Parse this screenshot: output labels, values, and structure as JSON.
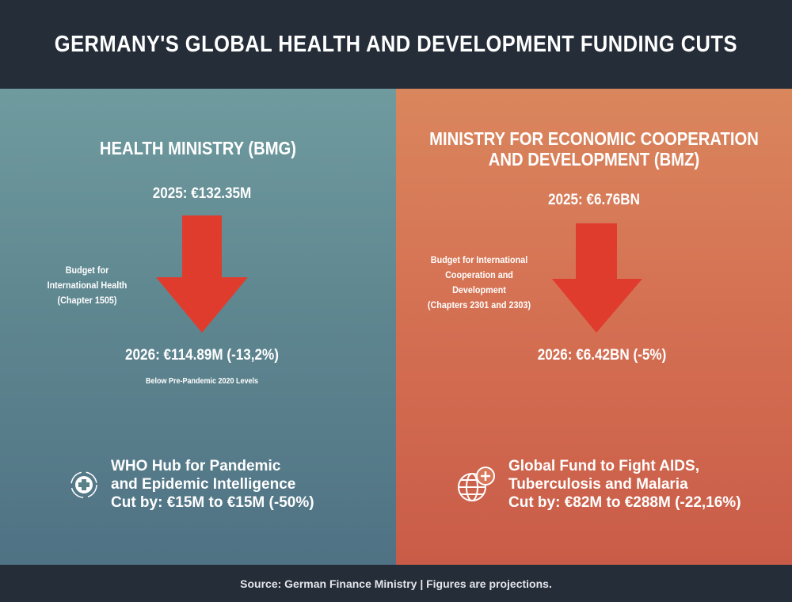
{
  "header": {
    "title": "GERMANY'S GLOBAL HEALTH AND DEVELOPMENT FUNDING CUTS"
  },
  "colors": {
    "header_bg": "#252d39",
    "left_panel": "#5f8790",
    "right_panel": "#d46f52",
    "arrow": "#e03c2d"
  },
  "left": {
    "title": "HEALTH MINISTRY (BMG)",
    "value_2025": "2025: €132.35M",
    "label_lines": [
      "Budget for",
      "International Health",
      "(Chapter 1505)"
    ],
    "value_2026": "2026: €114.89M (-13,2%)",
    "sub_note": "Below Pre-Pandemic 2020 Levels",
    "item": {
      "icon": "medical-cross-icon",
      "lines": [
        "WHO Hub for Pandemic",
        "and Epidemic Intelligence",
        "Cut by: €15M to €15M (-50%)"
      ]
    }
  },
  "right": {
    "title_lines": [
      "MINISTRY FOR ECONOMIC COOPERATION",
      "AND DEVELOPMENT (BMZ)"
    ],
    "value_2025": "2025: €6.76BN",
    "label_lines": [
      "Budget for International",
      "Cooperation and",
      "Development",
      "(Chapters 2301 and 2303)"
    ],
    "value_2026": "2026: €6.42BN (-5%)",
    "item": {
      "icon": "globe-plus-icon",
      "lines": [
        "Global Fund to Fight AIDS,",
        "Tuberculosis and Malaria",
        "Cut by: €82M to €288M (-22,16%)"
      ]
    }
  },
  "footer": {
    "source": "Source: German Finance Ministry | Figures are projections."
  }
}
